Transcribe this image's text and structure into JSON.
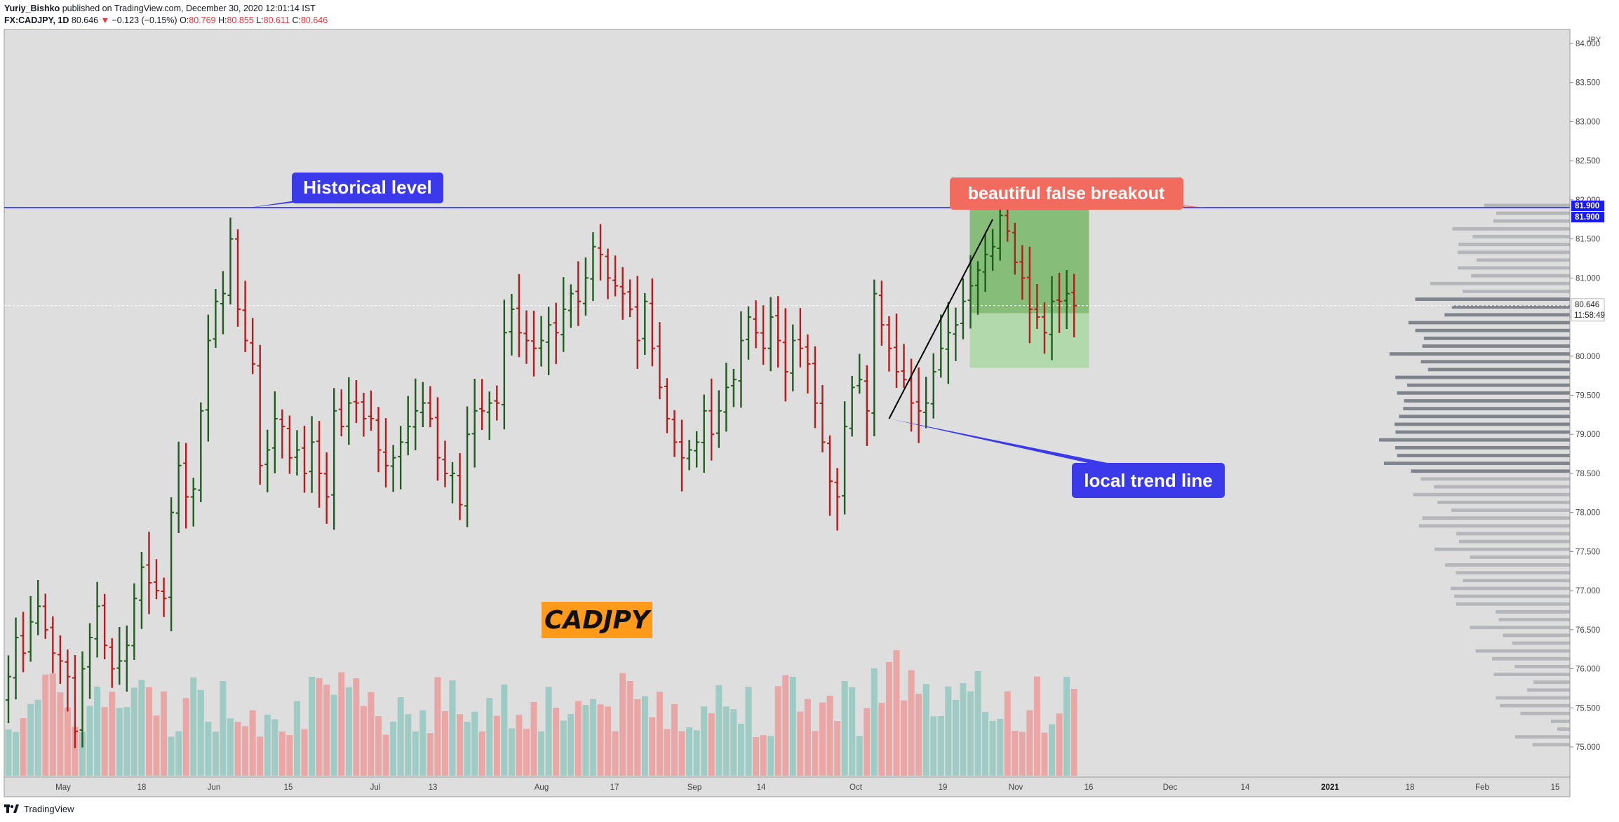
{
  "header": {
    "author": "Yuriy_Bishko",
    "published": "published on TradingView.com, December 30, 2020 12:01:14 IST",
    "symbol": "FX:CADJPY, 1D",
    "last": "80.646",
    "change_arrow": "▼",
    "change": "−0.123 (−0.15%)",
    "o_label": "O:",
    "o_value": "80.769",
    "h_label": "H:",
    "h_value": "80.855",
    "l_label": "L:",
    "l_value": "80.611",
    "c_label": "C:",
    "c_value": "80.646"
  },
  "footer": {
    "brand": "TradingView",
    "logo_icon": "tradingview-logo-icon"
  },
  "colors": {
    "background": "#dedede",
    "up": "#1d5e1d",
    "down": "#b71c1c",
    "volume_up": "#9fcbc5",
    "volume_down": "#eaa5a5",
    "level_line": "#1a1aff",
    "annotation_blue": "#3a3aea",
    "annotation_red": "#f16b5e",
    "label_orange": "#ff9a1a"
  },
  "chart_data": {
    "type": "ohlc-bar",
    "symbol": "CADJPY",
    "timeframe": "1D",
    "y_axis_unit": "JPY",
    "ylim": [
      74.7,
      84.3
    ],
    "y_ticks": [
      "84.000",
      "83.500",
      "83.000",
      "82.500",
      "82.000",
      "81.500",
      "81.000",
      "80.500",
      "80.000",
      "79.500",
      "79.000",
      "78.500",
      "78.000",
      "77.500",
      "77.000",
      "76.500",
      "76.000",
      "75.500",
      "75.000"
    ],
    "x_ticks": [
      "May",
      "18",
      "Jun",
      "15",
      "Jul",
      "13",
      "Aug",
      "17",
      "Sep",
      "14",
      "Oct",
      "19",
      "Nov",
      "16",
      "Dec",
      "14",
      "2021",
      "18",
      "Feb",
      "15"
    ],
    "price_tags": {
      "level_a": "81.900",
      "level_b": "81.900",
      "last": "80.646",
      "countdown": "11:58:49"
    },
    "horizontal_level": 81.9,
    "annotations": {
      "historical_level": "Historical level",
      "false_breakout": "beautiful false breakout",
      "trend_line": "local trend line",
      "symbol_label": "CADJPY"
    },
    "trend_line": {
      "from": {
        "date": "2020-11-26",
        "price": 79.2
      },
      "to": {
        "date": "2020-12-15",
        "price": 81.75
      }
    },
    "position_box": {
      "entry": 80.55,
      "stop": 82.2,
      "target": 79.85
    },
    "closes": [
      75.9,
      76.4,
      76.2,
      76.6,
      76.8,
      76.5,
      76.2,
      76.1,
      75.9,
      75.2,
      76.0,
      76.4,
      76.8,
      76.3,
      76.0,
      76.1,
      76.3,
      76.9,
      77.3,
      77.1,
      77.0,
      76.9,
      78.0,
      78.6,
      78.2,
      78.3,
      79.3,
      80.2,
      80.7,
      80.8,
      81.5,
      80.6,
      80.2,
      79.9,
      78.6,
      78.8,
      79.2,
      79.1,
      78.7,
      78.8,
      78.5,
      78.9,
      78.5,
      78.2,
      79.3,
      79.1,
      79.4,
      79.4,
      79.2,
      79.2,
      78.8,
      78.6,
      78.7,
      78.9,
      79.1,
      79.3,
      79.4,
      79.2,
      78.7,
      78.5,
      78.5,
      78.1,
      79.0,
      79.3,
      79.3,
      79.4,
      79.4,
      80.3,
      80.6,
      80.3,
      80.2,
      80.1,
      80.2,
      80.4,
      80.3,
      80.6,
      80.8,
      80.7,
      81.0,
      81.4,
      81.3,
      81.0,
      80.9,
      80.8,
      80.6,
      80.2,
      80.7,
      80.1,
      79.6,
      79.2,
      78.9,
      78.7,
      78.8,
      78.9,
      79.3,
      79.0,
      79.3,
      79.6,
      79.7,
      80.2,
      80.5,
      80.3,
      80.1,
      80.5,
      80.2,
      79.8,
      80.2,
      80.1,
      79.9,
      79.4,
      78.9,
      78.4,
      78.2,
      79.1,
      79.6,
      79.7,
      79.3,
      80.8,
      80.4,
      80.1,
      79.8,
      79.7,
      79.4,
      79.3,
      79.4,
      79.8,
      80.1,
      80.3,
      80.4,
      80.7,
      80.9,
      81.1,
      81.3,
      81.4,
      81.8,
      81.6,
      81.2,
      81.0,
      80.6,
      80.5,
      80.3,
      80.7,
      80.7,
      80.8,
      80.646
    ],
    "volume_profile": "horizontal volume-by-price histogram on the right side (gray)"
  }
}
